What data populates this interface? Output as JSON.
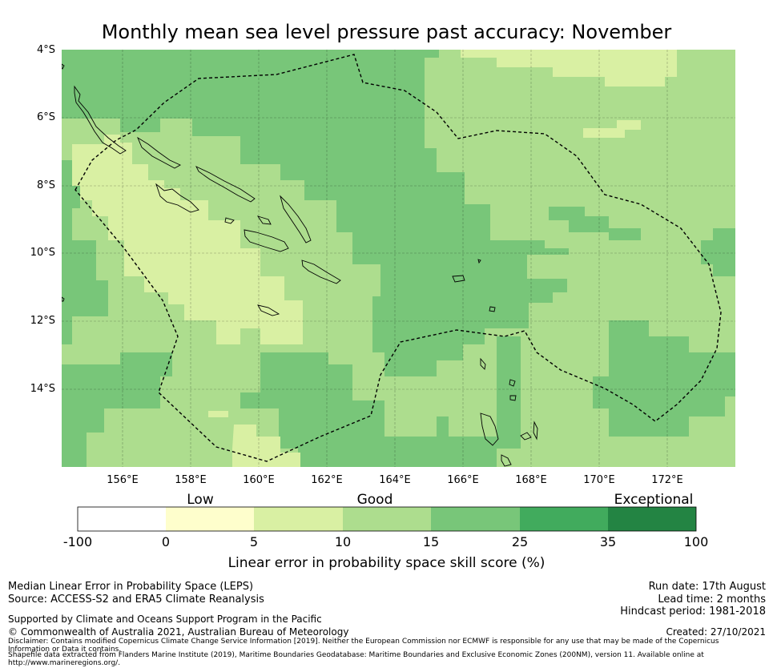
{
  "title": "Monthly mean sea level pressure past accuracy: November",
  "map": {
    "latitude_labels": [
      "4°S",
      "6°S",
      "8°S",
      "10°S",
      "12°S",
      "14°S"
    ],
    "longitude_labels": [
      "156°E",
      "158°E",
      "160°E",
      "162°E",
      "164°E",
      "166°E",
      "168°E",
      "170°E",
      "172°E"
    ],
    "colors": {
      "c0_5": "#fefecc",
      "c5_10": "#d9f0a3",
      "c10_15": "#addd8e",
      "c15_25": "#78c679",
      "c25_35": "#41ab5d",
      "c35_100": "#238443",
      "grid": "#000000",
      "coast": "#000000"
    }
  },
  "colorbar": {
    "categories": [
      "Low",
      "Good",
      "Exceptional"
    ],
    "ticks": [
      "-100",
      "0",
      "5",
      "10",
      "15",
      "25",
      "35",
      "100"
    ],
    "colors": [
      "#ffffff",
      "#fefecc",
      "#d9f0a3",
      "#addd8e",
      "#78c679",
      "#41ab5d",
      "#238443"
    ],
    "title": "Linear error in probability space skill score (%)"
  },
  "footer": {
    "left_line1": "Median Linear Error in Probability Space (LEPS)",
    "left_line2": "Source: ACCESS-S2 and ERA5 Climate Reanalysis",
    "supported_by": "Supported by Climate and Oceans Support Program in the Pacific",
    "copyright": "© Commonwealth of Australia 2021, Australian Bureau of Meteorology",
    "disclaimer1": "Disclaimer: Contains modified Copernicus Climate Change Service Information [2019]. Neither the European Commission nor ECMWF is responsible for any use that may be made of the Copernicus Information or Data it contains.",
    "disclaimer2": "Shapefile data extracted from Flanders Marine Institute (2019), Maritime Boundaries Geodatabase: Maritime Boundaries and Exclusive Economic Zones (200NM), version 11. Available online at http://www.marineregions.org/.",
    "run_date": "Run date: 17th August",
    "lead_time": "Lead time: 2 months",
    "hindcast": "Hindcast period: 1981-2018",
    "created": "Created: 27/10/2021"
  }
}
